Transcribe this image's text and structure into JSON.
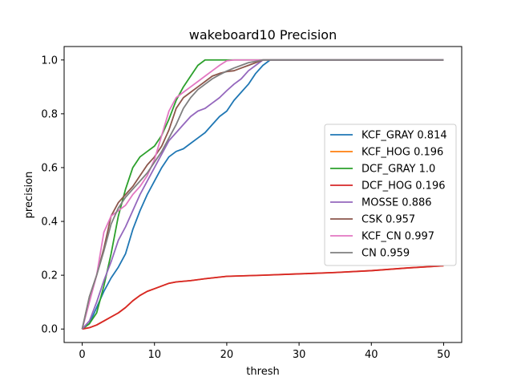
{
  "chart_data": {
    "type": "line",
    "title": "wakeboard10 Precision",
    "xlabel": "thresh",
    "ylabel": "precision",
    "xlim": [
      -2.5,
      52.5
    ],
    "ylim": [
      -0.05,
      1.05
    ],
    "xticks": [
      0,
      10,
      20,
      30,
      40,
      50
    ],
    "yticks": [
      0.0,
      0.2,
      0.4,
      0.6,
      0.8,
      1.0
    ],
    "xtick_labels": [
      "0",
      "10",
      "20",
      "30",
      "40",
      "50"
    ],
    "ytick_labels": [
      "0.0",
      "0.2",
      "0.4",
      "0.6",
      "0.8",
      "1.0"
    ],
    "grid": false,
    "legend_position": "center-right",
    "series": [
      {
        "name": "KCF_GRAY 0.814",
        "color": "#1f77b4",
        "points": [
          [
            0,
            0
          ],
          [
            1,
            0.02
          ],
          [
            2,
            0.08
          ],
          [
            3,
            0.14
          ],
          [
            4,
            0.19
          ],
          [
            5,
            0.23
          ],
          [
            6,
            0.28
          ],
          [
            7,
            0.37
          ],
          [
            8,
            0.44
          ],
          [
            9,
            0.5
          ],
          [
            10,
            0.55
          ],
          [
            11,
            0.6
          ],
          [
            12,
            0.64
          ],
          [
            13,
            0.66
          ],
          [
            14,
            0.67
          ],
          [
            15,
            0.69
          ],
          [
            16,
            0.71
          ],
          [
            17,
            0.73
          ],
          [
            18,
            0.76
          ],
          [
            19,
            0.79
          ],
          [
            20,
            0.81
          ],
          [
            21,
            0.85
          ],
          [
            22,
            0.88
          ],
          [
            23,
            0.91
          ],
          [
            24,
            0.95
          ],
          [
            25,
            0.98
          ],
          [
            26,
            1.0
          ],
          [
            50,
            1.0
          ]
        ]
      },
      {
        "name": "KCF_HOG 0.196",
        "color": "#ff7f0e",
        "points": [
          [
            0,
            0
          ],
          [
            1,
            0.005
          ],
          [
            2,
            0.015
          ],
          [
            3,
            0.03
          ],
          [
            4,
            0.045
          ],
          [
            5,
            0.06
          ],
          [
            6,
            0.08
          ],
          [
            7,
            0.105
          ],
          [
            8,
            0.125
          ],
          [
            9,
            0.14
          ],
          [
            10,
            0.15
          ],
          [
            11,
            0.16
          ],
          [
            12,
            0.17
          ],
          [
            13,
            0.175
          ],
          [
            15,
            0.18
          ],
          [
            17,
            0.187
          ],
          [
            20,
            0.196
          ],
          [
            25,
            0.2
          ],
          [
            30,
            0.205
          ],
          [
            35,
            0.21
          ],
          [
            40,
            0.217
          ],
          [
            45,
            0.227
          ],
          [
            50,
            0.235
          ]
        ]
      },
      {
        "name": "DCF_GRAY 1.0",
        "color": "#2ca02c",
        "points": [
          [
            0,
            0
          ],
          [
            1,
            0.02
          ],
          [
            2,
            0.06
          ],
          [
            3,
            0.16
          ],
          [
            4,
            0.28
          ],
          [
            5,
            0.42
          ],
          [
            6,
            0.52
          ],
          [
            7,
            0.6
          ],
          [
            8,
            0.64
          ],
          [
            9,
            0.66
          ],
          [
            10,
            0.68
          ],
          [
            11,
            0.72
          ],
          [
            12,
            0.78
          ],
          [
            13,
            0.85
          ],
          [
            14,
            0.9
          ],
          [
            15,
            0.94
          ],
          [
            16,
            0.98
          ],
          [
            17,
            1.0
          ],
          [
            50,
            1.0
          ]
        ]
      },
      {
        "name": "DCF_HOG 0.196",
        "color": "#d62728",
        "points": [
          [
            0,
            0
          ],
          [
            1,
            0.005
          ],
          [
            2,
            0.015
          ],
          [
            3,
            0.03
          ],
          [
            4,
            0.045
          ],
          [
            5,
            0.06
          ],
          [
            6,
            0.08
          ],
          [
            7,
            0.105
          ],
          [
            8,
            0.125
          ],
          [
            9,
            0.14
          ],
          [
            10,
            0.15
          ],
          [
            11,
            0.16
          ],
          [
            12,
            0.17
          ],
          [
            13,
            0.175
          ],
          [
            15,
            0.18
          ],
          [
            17,
            0.187
          ],
          [
            20,
            0.196
          ],
          [
            25,
            0.2
          ],
          [
            30,
            0.205
          ],
          [
            35,
            0.21
          ],
          [
            40,
            0.217
          ],
          [
            45,
            0.227
          ],
          [
            50,
            0.235
          ]
        ]
      },
      {
        "name": "MOSSE 0.886",
        "color": "#9467bd",
        "points": [
          [
            0,
            0
          ],
          [
            1,
            0.03
          ],
          [
            2,
            0.1
          ],
          [
            3,
            0.18
          ],
          [
            4,
            0.25
          ],
          [
            5,
            0.33
          ],
          [
            6,
            0.38
          ],
          [
            7,
            0.44
          ],
          [
            8,
            0.5
          ],
          [
            9,
            0.55
          ],
          [
            10,
            0.6
          ],
          [
            11,
            0.65
          ],
          [
            12,
            0.7
          ],
          [
            13,
            0.73
          ],
          [
            14,
            0.76
          ],
          [
            15,
            0.79
          ],
          [
            16,
            0.81
          ],
          [
            17,
            0.82
          ],
          [
            18,
            0.84
          ],
          [
            19,
            0.86
          ],
          [
            20,
            0.886
          ],
          [
            21,
            0.91
          ],
          [
            22,
            0.93
          ],
          [
            23,
            0.96
          ],
          [
            24,
            0.98
          ],
          [
            25,
            1.0
          ],
          [
            50,
            1.0
          ]
        ]
      },
      {
        "name": "CSK 0.957",
        "color": "#8c564b",
        "points": [
          [
            0,
            0
          ],
          [
            1,
            0.12
          ],
          [
            2,
            0.2
          ],
          [
            3,
            0.3
          ],
          [
            4,
            0.42
          ],
          [
            5,
            0.47
          ],
          [
            6,
            0.5
          ],
          [
            7,
            0.53
          ],
          [
            8,
            0.57
          ],
          [
            9,
            0.61
          ],
          [
            10,
            0.64
          ],
          [
            11,
            0.68
          ],
          [
            12,
            0.74
          ],
          [
            13,
            0.82
          ],
          [
            14,
            0.86
          ],
          [
            15,
            0.88
          ],
          [
            16,
            0.9
          ],
          [
            17,
            0.92
          ],
          [
            18,
            0.94
          ],
          [
            19,
            0.95
          ],
          [
            20,
            0.957
          ],
          [
            21,
            0.96
          ],
          [
            22,
            0.97
          ],
          [
            23,
            0.98
          ],
          [
            24,
            0.99
          ],
          [
            25,
            1.0
          ],
          [
            50,
            1.0
          ]
        ]
      },
      {
        "name": "KCF_CN 0.997",
        "color": "#e377c2",
        "points": [
          [
            0,
            0
          ],
          [
            1,
            0.1
          ],
          [
            2,
            0.2
          ],
          [
            3,
            0.36
          ],
          [
            4,
            0.42
          ],
          [
            5,
            0.44
          ],
          [
            6,
            0.46
          ],
          [
            7,
            0.5
          ],
          [
            8,
            0.53
          ],
          [
            9,
            0.57
          ],
          [
            10,
            0.63
          ],
          [
            11,
            0.72
          ],
          [
            12,
            0.81
          ],
          [
            13,
            0.86
          ],
          [
            14,
            0.88
          ],
          [
            15,
            0.9
          ],
          [
            16,
            0.92
          ],
          [
            17,
            0.94
          ],
          [
            18,
            0.96
          ],
          [
            19,
            0.98
          ],
          [
            20,
            0.997
          ],
          [
            21,
            1.0
          ],
          [
            50,
            1.0
          ]
        ]
      },
      {
        "name": "CN 0.959",
        "color": "#7f7f7f",
        "points": [
          [
            0,
            0
          ],
          [
            1,
            0.12
          ],
          [
            2,
            0.2
          ],
          [
            3,
            0.29
          ],
          [
            4,
            0.39
          ],
          [
            5,
            0.45
          ],
          [
            6,
            0.49
          ],
          [
            7,
            0.52
          ],
          [
            8,
            0.55
          ],
          [
            9,
            0.58
          ],
          [
            10,
            0.62
          ],
          [
            11,
            0.66
          ],
          [
            12,
            0.71
          ],
          [
            13,
            0.76
          ],
          [
            14,
            0.82
          ],
          [
            15,
            0.86
          ],
          [
            16,
            0.89
          ],
          [
            17,
            0.91
          ],
          [
            18,
            0.93
          ],
          [
            19,
            0.945
          ],
          [
            20,
            0.959
          ],
          [
            21,
            0.97
          ],
          [
            22,
            0.98
          ],
          [
            23,
            0.99
          ],
          [
            24,
            0.995
          ],
          [
            25,
            1.0
          ],
          [
            50,
            1.0
          ]
        ]
      }
    ]
  }
}
